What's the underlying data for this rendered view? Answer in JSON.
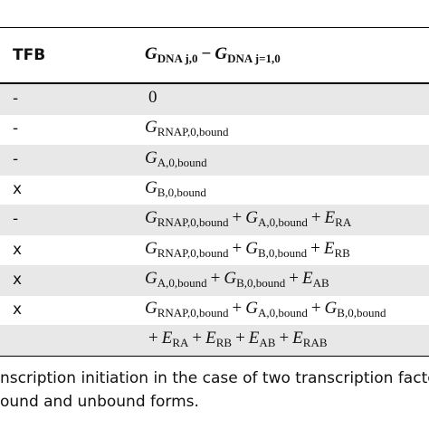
{
  "table": {
    "header": {
      "tfb": "TFB",
      "formula": [
        {
          "base": "G",
          "sub": "DNA j,0"
        },
        {
          "op": "−"
        },
        {
          "base": "G",
          "sub": "DNA j=1,0"
        }
      ]
    },
    "rows": [
      {
        "tfb": "-",
        "formula": [
          {
            "op": "0"
          }
        ]
      },
      {
        "tfb": "-",
        "formula": [
          {
            "base": "G",
            "sub": "RNAP,0,bound"
          }
        ]
      },
      {
        "tfb": "-",
        "formula": [
          {
            "base": "G",
            "sub": "A,0,bound"
          }
        ]
      },
      {
        "tfb": "x",
        "formula": [
          {
            "base": "G",
            "sub": "B,0,bound"
          }
        ]
      },
      {
        "tfb": "-",
        "formula": [
          {
            "base": "G",
            "sub": "RNAP,0,bound"
          },
          {
            "op": "+"
          },
          {
            "base": "G",
            "sub": "A,0,bound"
          },
          {
            "op": "+"
          },
          {
            "base": "E",
            "sub": "RA"
          }
        ]
      },
      {
        "tfb": "x",
        "formula": [
          {
            "base": "G",
            "sub": "RNAP,0,bound"
          },
          {
            "op": "+"
          },
          {
            "base": "G",
            "sub": "B,0,bound"
          },
          {
            "op": "+"
          },
          {
            "base": "E",
            "sub": "RB"
          }
        ]
      },
      {
        "tfb": "x",
        "formula": [
          {
            "base": "G",
            "sub": "A,0,bound"
          },
          {
            "op": "+"
          },
          {
            "base": "G",
            "sub": "B,0,bound"
          },
          {
            "op": "+"
          },
          {
            "base": "E",
            "sub": "AB"
          }
        ]
      },
      {
        "tfb": "x",
        "formula": [
          {
            "base": "G",
            "sub": "RNAP,0,bound"
          },
          {
            "op": "+"
          },
          {
            "base": "G",
            "sub": "A,0,bound"
          },
          {
            "op": "+"
          },
          {
            "base": "G",
            "sub": "B,0,bound"
          }
        ]
      },
      {
        "formula": [
          {
            "op": "+"
          },
          {
            "base": "E",
            "sub": "RA"
          },
          {
            "op": "+"
          },
          {
            "base": "E",
            "sub": "RB"
          },
          {
            "op": "+"
          },
          {
            "base": "E",
            "sub": "AB"
          },
          {
            "op": "+"
          },
          {
            "base": "E",
            "sub": "RAB"
          }
        ]
      }
    ]
  },
  "caption": [
    "nscription initiation in the case of two transcription factors",
    "ound and unbound forms."
  ]
}
